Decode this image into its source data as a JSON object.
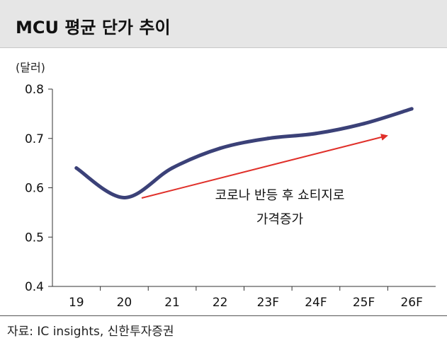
{
  "title": "MCU 평균 단가 추이",
  "unit_label": "(달러)",
  "source": "자료: IC insights, 신한투자증권",
  "colors": {
    "line": "#3b4178",
    "arrow": "#e0302a",
    "title_bg": "#e6e6e6"
  },
  "chart_data": {
    "type": "line",
    "title": "MCU 평균 단가 추이",
    "ylabel": "(달러)",
    "xlabel": "",
    "categories": [
      "19",
      "20",
      "21",
      "22",
      "23F",
      "24F",
      "25F",
      "26F"
    ],
    "series": [
      {
        "values": [
          0.64,
          0.58,
          0.64,
          0.68,
          0.7,
          0.71,
          0.73,
          0.76
        ]
      }
    ],
    "ylim": [
      0.4,
      0.8
    ],
    "yticks": [
      "0.8",
      "0.7",
      "0.6",
      "0.5",
      "0.4"
    ],
    "annotation": {
      "line1": "코로나 반등 후 쇼티지로",
      "line2": "가격증가"
    },
    "grid": false
  }
}
